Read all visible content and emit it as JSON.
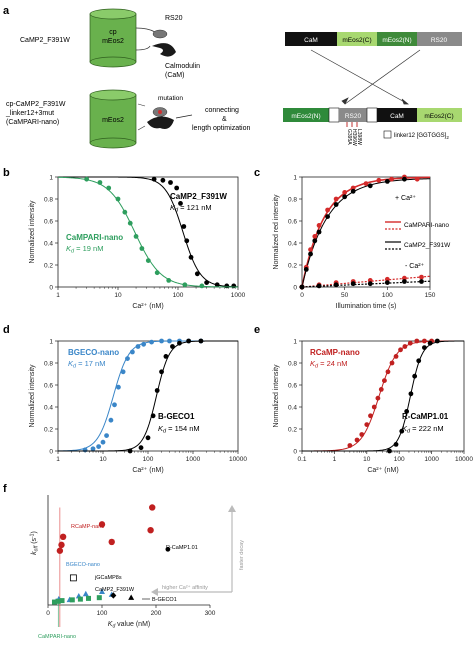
{
  "panel_a": {
    "label": "a",
    "construct1": {
      "name": "CaMP2_F391W",
      "barrel_label1": "cp",
      "barrel_label2": "mEos2",
      "rs20": "RS20",
      "calmodulin1": "Calmodulin",
      "calmodulin2": "(CaM)"
    },
    "construct2": {
      "name_line1": "cp-CaMP2_F391W",
      "name_line2": "_linker12+3mut",
      "name_line3": "(CaMPARI-nano)",
      "barrel_label": "mEos2",
      "mutation": "mutation",
      "connecting1": "connecting",
      "connecting2": "&",
      "connecting3": "length optimization"
    },
    "bar_top": [
      "CaM",
      "mEos2(C)",
      "mEos2(N)",
      "RS20"
    ],
    "bar_bottom": [
      "mEos2(N)",
      "RS20",
      "CaM",
      "mEos2(C)"
    ],
    "mutations": [
      "G395A",
      "H396W",
      "L398W"
    ],
    "linker_legend": "linker12 [GGTGGS]",
    "linker_sub": "2"
  },
  "chart_data": [
    {
      "panel": "b",
      "type": "line",
      "xlabel": "Ca2+ (nM)",
      "ylabel": "Normalized intensity",
      "xscale": "log",
      "xlim": [
        1,
        1000
      ],
      "ylim": [
        0,
        1
      ],
      "xticks": [
        "1",
        "10",
        "100",
        "1000"
      ],
      "yticks": [
        "0",
        "0.2",
        "0.4",
        "0.6",
        "0.8",
        "1"
      ],
      "annotations": [
        {
          "name": "CaMP2_F391W",
          "kd": "Kd = 121 nM"
        },
        {
          "name": "CaMPARI-nano",
          "kd": "Kd = 19 nM"
        }
      ],
      "series": [
        {
          "name": "CaMP2_F391W",
          "color": "#000000",
          "kd": 121,
          "hill": 3.0,
          "x": [
            40,
            56,
            75,
            95,
            110,
            125,
            140,
            165,
            210,
            300,
            450,
            650,
            850
          ],
          "y": [
            0.98,
            0.97,
            0.95,
            0.9,
            0.76,
            0.55,
            0.42,
            0.27,
            0.12,
            0.04,
            0.02,
            0.01,
            0.01
          ]
        },
        {
          "name": "CaMPARI-nano",
          "color": "#2e9e5e",
          "kd": 19,
          "hill": 2.0,
          "x": [
            3,
            5,
            7,
            10,
            13,
            16,
            20,
            25,
            32,
            45,
            70,
            130,
            250
          ],
          "y": [
            0.98,
            0.95,
            0.9,
            0.8,
            0.68,
            0.58,
            0.46,
            0.35,
            0.24,
            0.13,
            0.06,
            0.02,
            0.01
          ]
        }
      ]
    },
    {
      "panel": "c",
      "type": "scatter",
      "xlabel": "Illumination time (s)",
      "ylabel": "Normalized red intensity",
      "xlim": [
        0,
        150
      ],
      "ylim": [
        0,
        1
      ],
      "xticks": [
        "0",
        "50",
        "100",
        "150"
      ],
      "yticks": [
        "0",
        "0.2",
        "0.4",
        "0.6",
        "0.8",
        "1"
      ],
      "annotations": [
        "+ Ca2+",
        "- Ca2+"
      ],
      "legend": [
        "CaMPARI-nano",
        "CaMP2_F391W"
      ],
      "series": [
        {
          "name": "CaMPARI-nano + Ca2+",
          "color": "#d42a2a",
          "x": [
            0,
            5,
            10,
            15,
            20,
            30,
            40,
            50,
            60,
            75,
            90,
            105,
            120,
            135
          ],
          "y": [
            0,
            0.18,
            0.34,
            0.46,
            0.56,
            0.7,
            0.8,
            0.86,
            0.9,
            0.94,
            0.97,
            0.98,
            1.0,
            0.98
          ]
        },
        {
          "name": "CaMP2_F391W + Ca2+",
          "color": "#000000",
          "x": [
            0,
            5,
            10,
            15,
            20,
            30,
            40,
            50,
            60,
            80,
            100,
            120
          ],
          "y": [
            0,
            0.16,
            0.3,
            0.42,
            0.5,
            0.64,
            0.75,
            0.82,
            0.87,
            0.92,
            0.96,
            0.98
          ]
        },
        {
          "name": "CaMPARI-nano - Ca2+",
          "color": "#d42a2a",
          "x": [
            0,
            20,
            40,
            60,
            80,
            100,
            120,
            140
          ],
          "y": [
            0,
            0.02,
            0.04,
            0.05,
            0.06,
            0.07,
            0.08,
            0.09
          ]
        },
        {
          "name": "CaMP2_F391W - Ca2+",
          "color": "#000000",
          "x": [
            0,
            20,
            40,
            60,
            80,
            100,
            120,
            140
          ],
          "y": [
            0,
            0.01,
            0.02,
            0.03,
            0.03,
            0.04,
            0.05,
            0.05
          ]
        }
      ]
    },
    {
      "panel": "d",
      "type": "line",
      "xlabel": "Ca2+ (nM)",
      "ylabel": "Normalized intensity",
      "xscale": "log",
      "xlim": [
        1,
        10000
      ],
      "ylim": [
        0,
        1
      ],
      "xticks": [
        "1",
        "10",
        "100",
        "1000",
        "10000"
      ],
      "yticks": [
        "0",
        "0.2",
        "0.4",
        "0.6",
        "0.8",
        "1"
      ],
      "annotations": [
        {
          "name": "BGECO-nano",
          "kd": "Kd = 17 nM"
        },
        {
          "name": "B-GECO1",
          "kd": "Kd = 154 nM"
        }
      ],
      "series": [
        {
          "name": "BGECO-nano",
          "color": "#3a86c8",
          "kd": 17,
          "hill": 2.5,
          "x": [
            4,
            6,
            8,
            10,
            12,
            15,
            18,
            22,
            28,
            35,
            45,
            60,
            80,
            120,
            200,
            300,
            500,
            800,
            1500
          ],
          "y": [
            0.01,
            0.02,
            0.04,
            0.08,
            0.14,
            0.28,
            0.42,
            0.58,
            0.72,
            0.84,
            0.9,
            0.95,
            0.97,
            0.99,
            1.0,
            1.0,
            1.0,
            1.0,
            1.0
          ]
        },
        {
          "name": "B-GECO1",
          "color": "#000000",
          "kd": 154,
          "hill": 3.0,
          "x": [
            40,
            70,
            100,
            130,
            160,
            200,
            250,
            350,
            500,
            800,
            1500
          ],
          "y": [
            0.0,
            0.03,
            0.12,
            0.32,
            0.55,
            0.72,
            0.86,
            0.95,
            0.98,
            1.0,
            1.0
          ]
        }
      ]
    },
    {
      "panel": "e",
      "type": "line",
      "xlabel": "Ca2+ (nM)",
      "ylabel": "Normalized intensity",
      "xscale": "log",
      "xlim": [
        0.1,
        10000
      ],
      "ylim": [
        0,
        1
      ],
      "xticks": [
        "0.1",
        "1",
        "10",
        "100",
        "1000",
        "10000"
      ],
      "yticks": [
        "0",
        "0.2",
        "0.4",
        "0.6",
        "0.8",
        "1"
      ],
      "annotations": [
        {
          "name": "RCaMP-nano",
          "kd": "Kd = 24 nM"
        },
        {
          "name": "R-CaMP1.01",
          "kd": "Kd = 222 nM"
        }
      ],
      "series": [
        {
          "name": "RCaMP-nano",
          "color": "#c02020",
          "kd": 24,
          "hill": 1.6,
          "x": [
            3,
            5,
            7,
            10,
            13,
            17,
            22,
            28,
            35,
            45,
            60,
            80,
            110,
            150,
            220,
            350,
            600,
            1000
          ],
          "y": [
            0.05,
            0.1,
            0.15,
            0.24,
            0.32,
            0.4,
            0.48,
            0.56,
            0.64,
            0.72,
            0.8,
            0.86,
            0.92,
            0.95,
            0.98,
            1.0,
            1.0,
            1.0
          ]
        },
        {
          "name": "R-CaMP1.01",
          "color": "#000000",
          "kd": 222,
          "hill": 2.4,
          "x": [
            50,
            80,
            120,
            170,
            230,
            300,
            400,
            600,
            900,
            1500
          ],
          "y": [
            0.0,
            0.06,
            0.18,
            0.36,
            0.52,
            0.68,
            0.82,
            0.94,
            0.98,
            1.0
          ]
        }
      ]
    },
    {
      "panel": "f",
      "type": "scatter",
      "xlabel": "Kd value (nM)",
      "ylabel": "koff (s-1)",
      "xlim": [
        0,
        300
      ],
      "ylim": [
        0,
        15
      ],
      "xticks": [
        "0",
        "100",
        "200",
        "300"
      ],
      "annotations": [
        "faster decay",
        "higher Ca2+ affinity"
      ],
      "series": [
        {
          "name": "RCaMP-nano",
          "color": "#c02020",
          "marker": "circle",
          "x": [
            22,
            25,
            28,
            100,
            118,
            190,
            193
          ],
          "y": [
            7.4,
            8.2,
            9.3,
            11.0,
            8.6,
            10.2,
            13.3
          ]
        },
        {
          "name": "R-CaMP1.01",
          "color": "#000000",
          "marker": "circle",
          "x": [
            222
          ],
          "y": [
            7.6
          ]
        },
        {
          "name": "BGECO-nano",
          "color": "#3a86c8",
          "marker": "triangle",
          "x": [
            15,
            20,
            40,
            57,
            70,
            100,
            118
          ],
          "y": [
            0.5,
            0.8,
            0.7,
            1.2,
            1.5,
            1.8,
            1.4
          ]
        },
        {
          "name": "jGCaMP8s",
          "color": "#000000",
          "marker": "open-square",
          "x": [
            47
          ],
          "y": [
            3.7
          ]
        },
        {
          "name": "CaMP2_F391W",
          "color": "#000000",
          "marker": "diamond",
          "x": [
            121
          ],
          "y": [
            1.3
          ]
        },
        {
          "name": "B-GECO1",
          "color": "#000000",
          "marker": "triangle",
          "x": [
            154
          ],
          "y": [
            1.0
          ]
        },
        {
          "name": "CaMPARI-nano",
          "color": "#2e9e5e",
          "marker": "square",
          "x": [
            12,
            19,
            26,
            45,
            60,
            75,
            95
          ],
          "y": [
            0.4,
            0.5,
            0.6,
            0.7,
            0.8,
            0.9,
            1.0
          ]
        }
      ],
      "point_labels": [
        "RCaMP-nano",
        "R-CaMP1.01",
        "BGECO-nano",
        "jGCaMP8s",
        "CaMP2_F391W",
        "B-GECO1",
        "CaMPARI-nano"
      ]
    }
  ]
}
